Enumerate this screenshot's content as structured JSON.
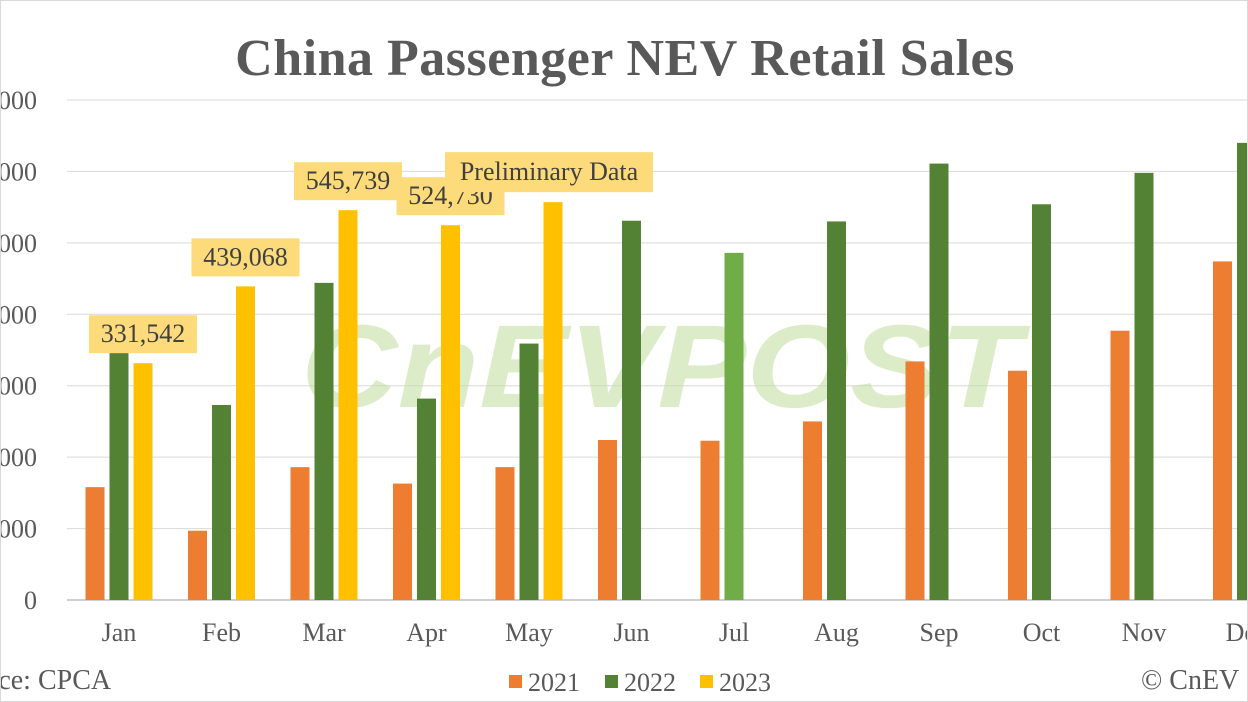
{
  "chart_data": {
    "type": "bar",
    "title": "China Passenger NEV Retail Sales",
    "categories": [
      "Jan",
      "Feb",
      "Mar",
      "Apr",
      "May",
      "Jun",
      "Jul",
      "Aug",
      "Sep",
      "Oct",
      "Nov",
      "Dec"
    ],
    "series": [
      {
        "name": "2021",
        "color": "#ed7d31",
        "values": [
          158000,
          97000,
          186000,
          163000,
          186000,
          224000,
          223000,
          250000,
          334000,
          321000,
          377000,
          474000
        ]
      },
      {
        "name": "2022",
        "color": "#548235",
        "values": [
          347000,
          273000,
          444000,
          282000,
          359000,
          531000,
          486000,
          530000,
          611000,
          554000,
          598000,
          640000
        ]
      },
      {
        "name": "2023",
        "color": "#ffc000",
        "values": [
          331542,
          439068,
          545739,
          524730,
          557000,
          null,
          null,
          null,
          null,
          null,
          null,
          null
        ]
      }
    ],
    "highlight": {
      "category": "Jul",
      "series": "2022",
      "color": "#70ad47"
    },
    "data_labels": [
      {
        "series": "2023",
        "category": "Jan",
        "text": "331,542"
      },
      {
        "series": "2023",
        "category": "Feb",
        "text": "439,068"
      },
      {
        "series": "2023",
        "category": "Mar",
        "text": "545,739"
      },
      {
        "series": "2023",
        "category": "Apr",
        "text": "524,730"
      }
    ],
    "annotation": {
      "text": "Preliminary Data",
      "category": "May",
      "series": "2023"
    },
    "yticks": [
      "0",
      "000",
      "000",
      "000",
      "000",
      "000",
      "000",
      "000"
    ],
    "ylim": [
      0,
      700000
    ],
    "ystep": 100000,
    "xlabel": "",
    "ylabel": "",
    "grid": true,
    "legend_position": "bottom",
    "label_box_color": "#fddb7a"
  },
  "watermark": {
    "text": "CnEVPOST",
    "color": "#c5e0a5"
  },
  "footer": {
    "source": "rce: CPCA",
    "copyright": "© CnEV"
  }
}
